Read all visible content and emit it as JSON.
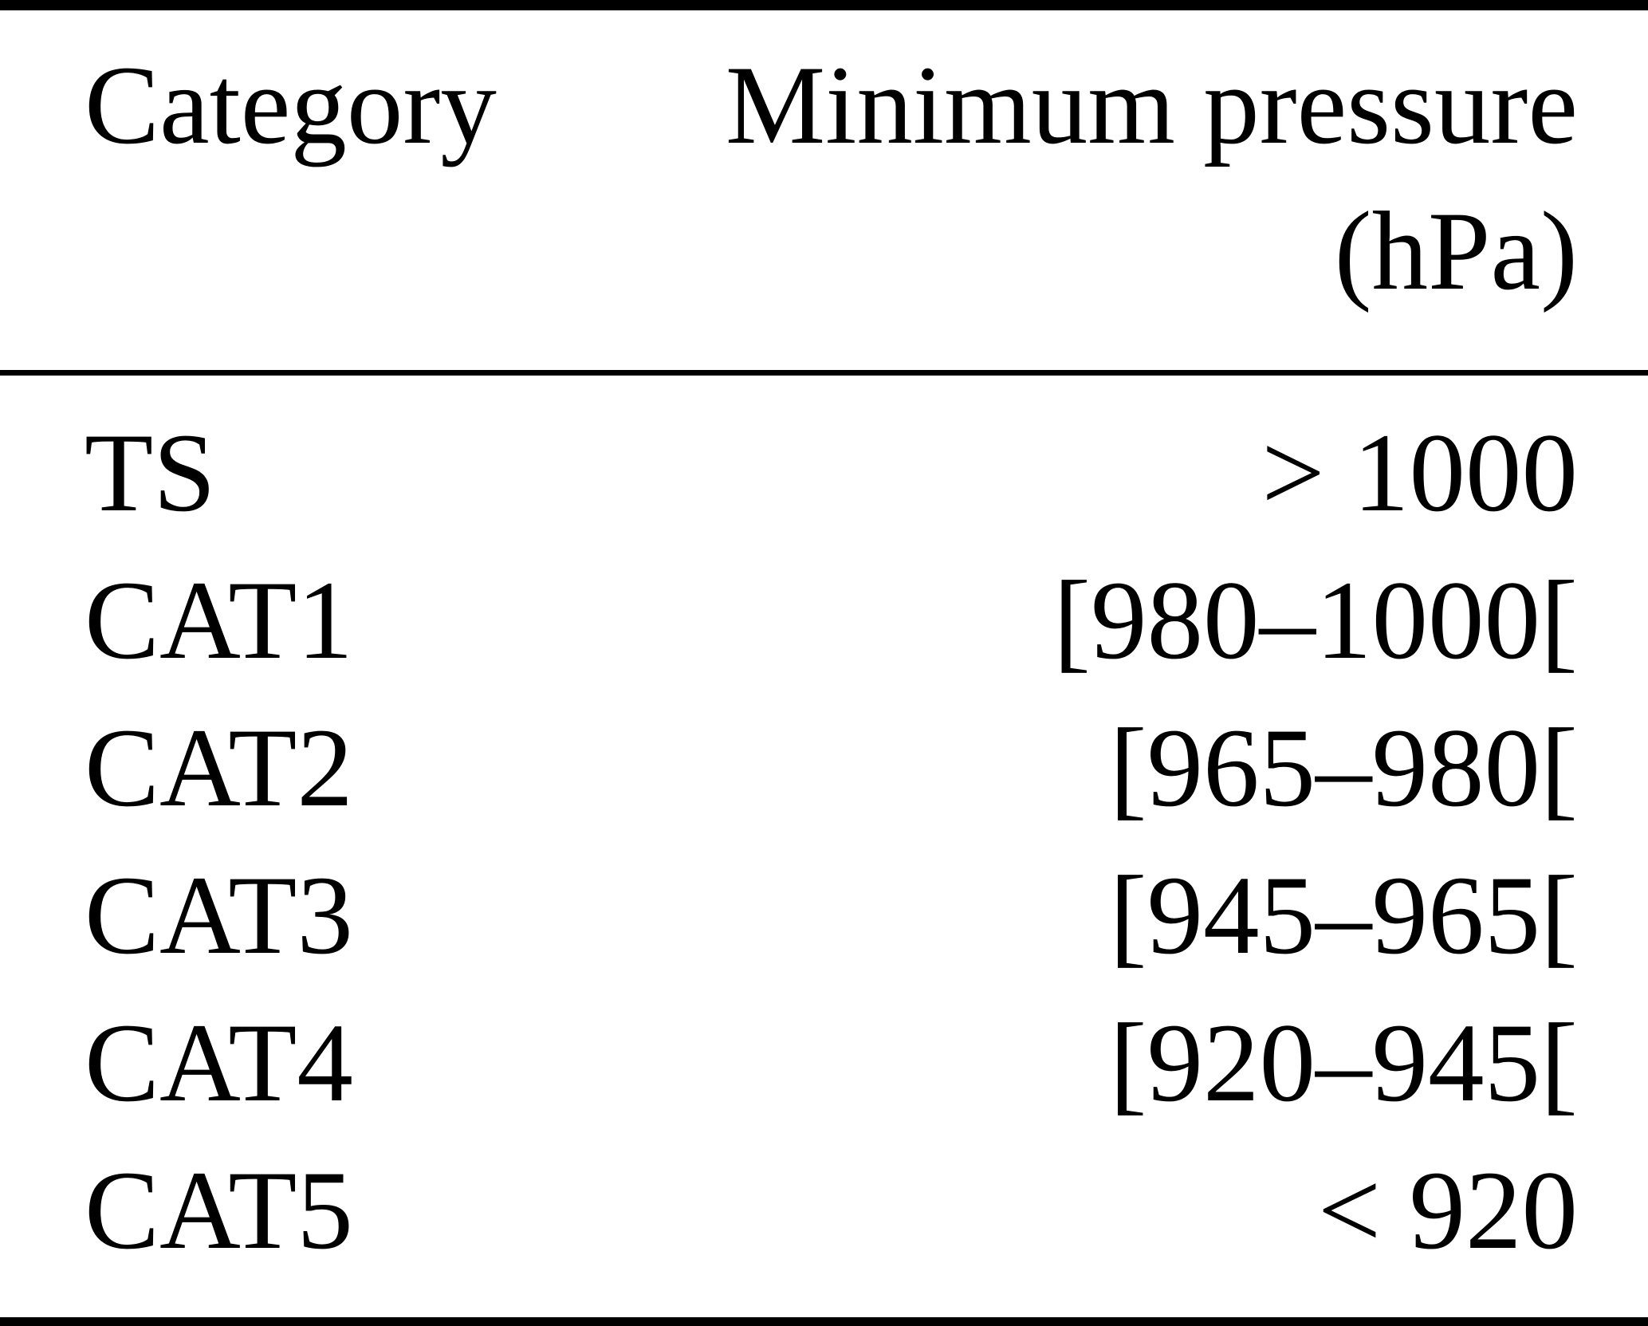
{
  "table": {
    "header": {
      "category_label": "Category",
      "pressure_label_line1": "Minimum pressure",
      "pressure_label_line2": "(hPa)"
    },
    "rows": [
      {
        "category": "TS",
        "pressure": "> 1000"
      },
      {
        "category": "CAT1",
        "pressure": "[980–1000["
      },
      {
        "category": "CAT2",
        "pressure": "[965–980["
      },
      {
        "category": "CAT3",
        "pressure": "[945–965["
      },
      {
        "category": "CAT4",
        "pressure": "[920–945["
      },
      {
        "category": "CAT5",
        "pressure": "< 920"
      }
    ]
  },
  "colors": {
    "text": "#000000",
    "background": "#ffffff",
    "rule": "#000000"
  }
}
